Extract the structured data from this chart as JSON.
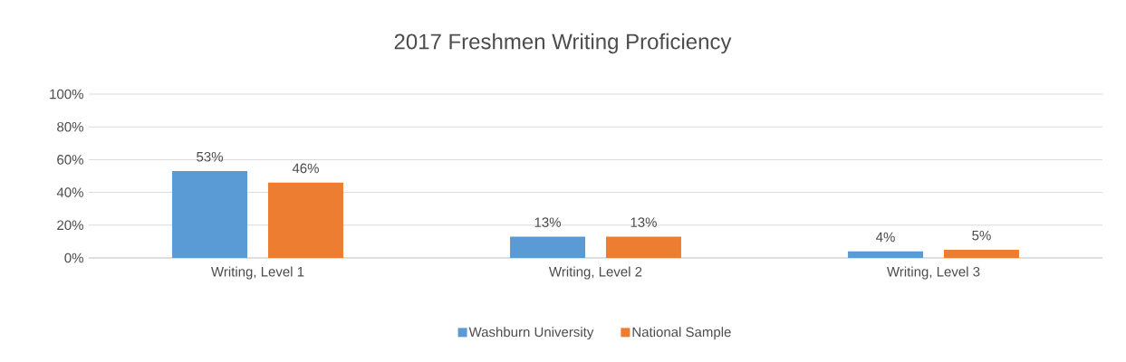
{
  "chart_data": {
    "type": "bar",
    "title": "2017 Freshmen Writing Proficiency",
    "categories": [
      "Writing, Level 1",
      "Writing, Level 2",
      "Writing, Level 3"
    ],
    "series": [
      {
        "name": "Washburn University",
        "color": "#5b9bd5",
        "values": [
          53,
          13,
          4
        ],
        "value_labels": [
          "53%",
          "13%",
          "4%"
        ]
      },
      {
        "name": "National Sample",
        "color": "#ed7d31",
        "values": [
          46,
          13,
          5
        ],
        "value_labels": [
          "46%",
          "13%",
          "5%"
        ]
      }
    ],
    "ylim": [
      0,
      100
    ],
    "yticks": [
      {
        "value": 0,
        "label": "0%"
      },
      {
        "value": 20,
        "label": "20%"
      },
      {
        "value": 40,
        "label": "40%"
      },
      {
        "value": 60,
        "label": "60%"
      },
      {
        "value": 80,
        "label": "80%"
      },
      {
        "value": 100,
        "label": "100%"
      }
    ],
    "grid": "y",
    "legend": "bottom"
  }
}
